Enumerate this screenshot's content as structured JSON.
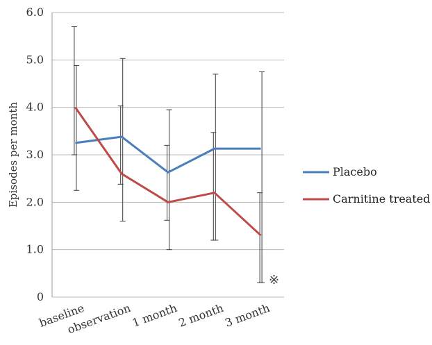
{
  "chart_data": {
    "type": "line",
    "categories": [
      "baseline",
      "observation",
      "1 month",
      "2 month",
      "3 month"
    ],
    "ylabel": "Episodes per month",
    "xlabel": "",
    "ylim": [
      0,
      6
    ],
    "yticks": [
      "0",
      "1.0",
      "2.0",
      "3.0",
      "4.0",
      "5.0",
      "6.0"
    ],
    "grid": true,
    "legend_position": "right",
    "series": [
      {
        "name": "Placebo",
        "color": "#4a7ebb",
        "values": [
          3.25,
          3.38,
          2.63,
          3.13,
          3.13
        ],
        "error_low": [
          2.25,
          1.6,
          1.0,
          1.2,
          0.3
        ],
        "error_high": [
          4.88,
          5.03,
          3.95,
          4.7,
          4.75
        ]
      },
      {
        "name": "Carnitine treated",
        "color": "#be4b48",
        "values": [
          4.0,
          2.6,
          2.0,
          2.2,
          1.3
        ],
        "error_low": [
          3.0,
          2.38,
          1.62,
          1.2,
          0.3
        ],
        "error_high": [
          5.7,
          4.03,
          3.2,
          3.47,
          2.2
        ]
      }
    ],
    "annotation": "※"
  }
}
